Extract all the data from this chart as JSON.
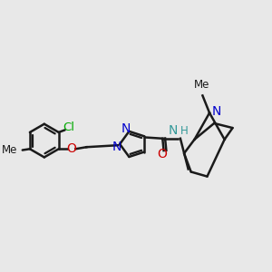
{
  "background_color": "#e8e8e8",
  "bond_color": "#1a1a1a",
  "bond_width": 1.8,
  "figsize": [
    3.0,
    3.0
  ],
  "dpi": 100,
  "xlim": [
    -2.5,
    8.5
  ],
  "ylim": [
    -2.5,
    4.5
  ],
  "atoms": {
    "Cl": {
      "color": "#00aa00"
    },
    "O": {
      "color": "#cc0000"
    },
    "N": {
      "color": "#0000cc"
    },
    "NH": {
      "color": "#339999"
    },
    "C": {
      "color": "#1a1a1a"
    }
  }
}
